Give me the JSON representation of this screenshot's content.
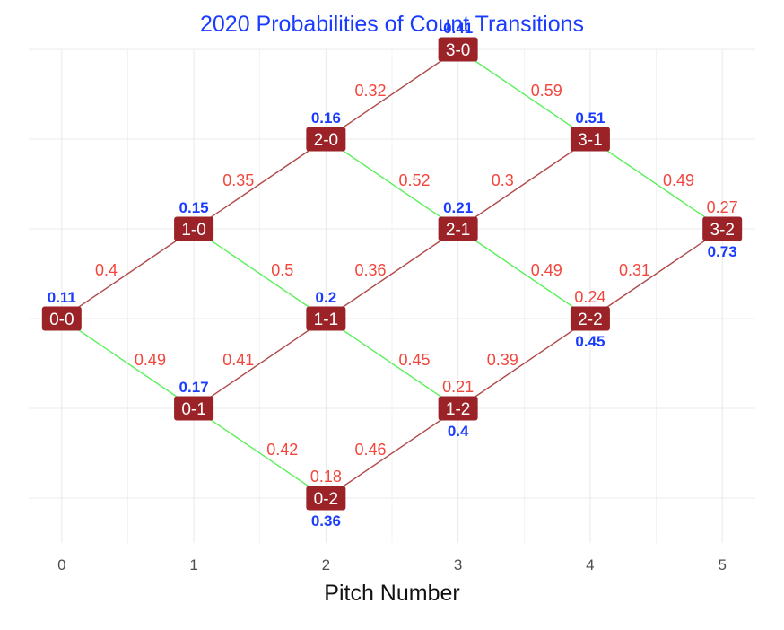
{
  "chart_data": {
    "type": "network",
    "title": "2020 Probabilities of Count Transitions",
    "xlabel": "Pitch Number",
    "ylabel": "",
    "x_ticks": [
      "0",
      "1",
      "2",
      "3",
      "4",
      "5"
    ],
    "xlim": [
      -0.25,
      5.25
    ],
    "ylim": [
      -2.5,
      3.0
    ],
    "grid": true,
    "colors": {
      "title": "#1a3cff",
      "node_fill": "#9b2226",
      "ball_edge": "#b14a4a",
      "strike_edge": "#5cf05c",
      "edge_label": "#f2463c",
      "node_prob": "#1a3cff",
      "grid": "#ebebeb"
    },
    "nodes": [
      {
        "label": "0-0",
        "x": 0,
        "y": 0,
        "prob": "0.11",
        "prob_pos": "above"
      },
      {
        "label": "1-0",
        "x": 1,
        "y": 1,
        "prob": "0.15",
        "prob_pos": "above"
      },
      {
        "label": "0-1",
        "x": 1,
        "y": -1,
        "prob": "0.17",
        "prob_pos": "above"
      },
      {
        "label": "2-0",
        "x": 2,
        "y": 2,
        "prob": "0.16",
        "prob_pos": "above"
      },
      {
        "label": "1-1",
        "x": 2,
        "y": 0,
        "prob": "0.2",
        "prob_pos": "above"
      },
      {
        "label": "0-2",
        "x": 2,
        "y": -2,
        "prob": "0.36",
        "prob_pos": "below"
      },
      {
        "label": "3-0",
        "x": 3,
        "y": 3,
        "prob": "0.41",
        "prob_pos": "above"
      },
      {
        "label": "2-1",
        "x": 3,
        "y": 1,
        "prob": "0.21",
        "prob_pos": "above"
      },
      {
        "label": "1-2",
        "x": 3,
        "y": -1,
        "prob": "0.4",
        "prob_pos": "below"
      },
      {
        "label": "3-1",
        "x": 4,
        "y": 2,
        "prob": "0.51",
        "prob_pos": "above"
      },
      {
        "label": "2-2",
        "x": 4,
        "y": 0,
        "prob": "0.45",
        "prob_pos": "below"
      },
      {
        "label": "3-2",
        "x": 5,
        "y": 1,
        "prob": "0.73",
        "prob_pos": "below"
      }
    ],
    "edges": [
      {
        "from": "0-0",
        "to": "1-0",
        "kind": "ball",
        "value": "0.4"
      },
      {
        "from": "0-0",
        "to": "0-1",
        "kind": "strike",
        "value": "0.49"
      },
      {
        "from": "1-0",
        "to": "2-0",
        "kind": "ball",
        "value": "0.35"
      },
      {
        "from": "1-0",
        "to": "1-1",
        "kind": "strike",
        "value": "0.5"
      },
      {
        "from": "0-1",
        "to": "1-1",
        "kind": "ball",
        "value": "0.41"
      },
      {
        "from": "0-1",
        "to": "0-2",
        "kind": "strike",
        "value": "0.42"
      },
      {
        "from": "2-0",
        "to": "3-0",
        "kind": "ball",
        "value": "0.32"
      },
      {
        "from": "2-0",
        "to": "2-1",
        "kind": "strike",
        "value": "0.52"
      },
      {
        "from": "1-1",
        "to": "2-1",
        "kind": "ball",
        "value": "0.36"
      },
      {
        "from": "1-1",
        "to": "1-2",
        "kind": "strike",
        "value": "0.45"
      },
      {
        "from": "0-2",
        "to": "1-2",
        "kind": "ball",
        "value": "0.46"
      },
      {
        "from": "3-0",
        "to": "3-1",
        "kind": "strike",
        "value": "0.59"
      },
      {
        "from": "2-1",
        "to": "3-1",
        "kind": "ball",
        "value": "0.3"
      },
      {
        "from": "2-1",
        "to": "2-2",
        "kind": "strike",
        "value": "0.49"
      },
      {
        "from": "1-2",
        "to": "2-2",
        "kind": "ball",
        "value": "0.39"
      },
      {
        "from": "3-1",
        "to": "3-2",
        "kind": "strike",
        "value": "0.49"
      },
      {
        "from": "2-2",
        "to": "3-2",
        "kind": "ball",
        "value": "0.31"
      }
    ],
    "self_loops": [
      {
        "node": "0-2",
        "value": "0.18"
      },
      {
        "node": "1-2",
        "value": "0.21"
      },
      {
        "node": "2-2",
        "value": "0.24"
      },
      {
        "node": "3-2",
        "value": "0.27"
      }
    ]
  }
}
